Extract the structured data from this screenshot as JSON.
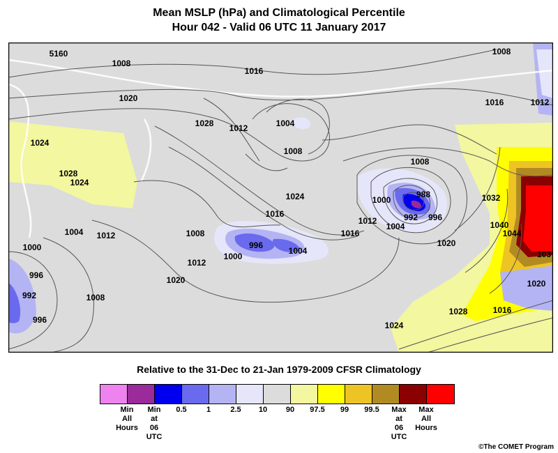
{
  "title_line1": "Mean MSLP (hPa) and Climatological Percentile",
  "title_line2": "Hour 042 - Valid 06 UTC 11 January 2017",
  "subtitle": "Relative to the 31-Dec to 21-Jan 1979-2009 CFSR Climatology",
  "credit": "©The COMET Program",
  "map_labels": [
    "5160",
    "1008",
    "1016",
    "1020",
    "1028",
    "1012",
    "1004",
    "1008",
    "1024",
    "1008",
    "1016",
    "1012",
    "1028",
    "1024",
    "1004",
    "1012",
    "1000",
    "996",
    "992",
    "996",
    "1008",
    "1008",
    "996",
    "1004",
    "1000",
    "1012",
    "1024",
    "1016",
    "1000",
    "988",
    "992",
    "996",
    "1012",
    "1004",
    "1020",
    "1032",
    "1040",
    "1044",
    "1020",
    "1020",
    "1016",
    "1028",
    "1024",
    "1016",
    "1008",
    "103"
  ],
  "legend": {
    "swatches": [
      {
        "color": "#ee82ee",
        "label": "Min\nAll\nHours"
      },
      {
        "color": "#9b2a9b",
        "label": "Min\nat\n06\nUTC"
      },
      {
        "color": "#0000ee",
        "label": "0.5"
      },
      {
        "color": "#6a6aee",
        "label": "1"
      },
      {
        "color": "#b4b4f4",
        "label": "2.5"
      },
      {
        "color": "#e6e6fa",
        "label": "10"
      },
      {
        "color": "#dcdcdc",
        "label": "90"
      },
      {
        "color": "#f2f7a0",
        "label": "97.5"
      },
      {
        "color": "#ffff00",
        "label": "99"
      },
      {
        "color": "#eec424",
        "label": "99.5"
      },
      {
        "color": "#b18b22",
        "label": "Max\nat\n06\nUTC"
      },
      {
        "color": "#8b0000",
        "label": "Max\nAll\nHours"
      },
      {
        "color": "#ff0000",
        "label": ""
      }
    ]
  }
}
